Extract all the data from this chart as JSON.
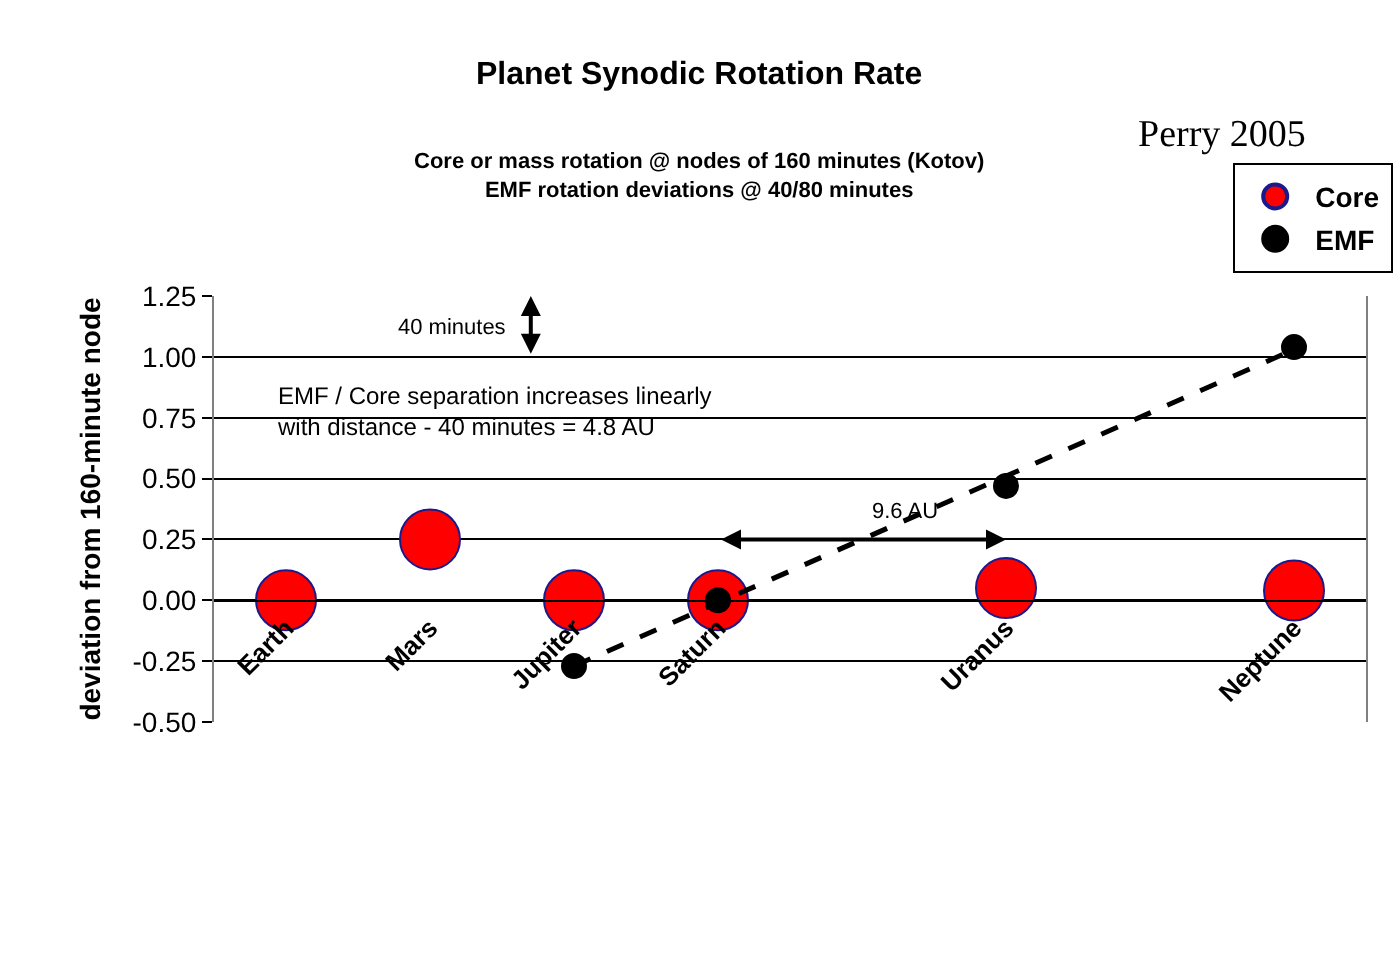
{
  "chart_data": {
    "type": "scatter",
    "title": "Planet Synodic Rotation Rate",
    "subtitle": "Core or mass rotation @ nodes of 160 minutes (Kotov)\nEMF rotation deviations @ 40/80 minutes",
    "ylabel": "deviation from 160-minute node",
    "categories": [
      "Earth",
      "Mars",
      "Jupiter",
      "Saturn",
      null,
      "Uranus",
      null,
      "Neptune"
    ],
    "series": [
      {
        "name": "Core",
        "color": "#ff0000",
        "marker": "circle",
        "values": [
          0,
          0.25,
          0,
          0,
          null,
          0.05,
          null,
          0.04
        ]
      },
      {
        "name": "EMF",
        "color": "#000000",
        "marker": "circle",
        "values": [
          null,
          null,
          -0.27,
          0,
          null,
          0.47,
          null,
          1.04
        ]
      },
      {
        "type": "line",
        "color": "#000000",
        "line_style": "dashed",
        "values": [
          null,
          null,
          -0.27,
          -0.01,
          0.25,
          0.51,
          0.77,
          1.03
        ]
      }
    ],
    "ylim": [
      -0.5,
      1.25
    ],
    "yticks": [
      {
        "value": -0.5,
        "label": "-0.50"
      },
      {
        "value": -0.25,
        "label": "-0.25"
      },
      {
        "value": 0,
        "label": "0.00"
      },
      {
        "value": 0.25,
        "label": "0.25"
      },
      {
        "value": 0.5,
        "label": "0.50"
      },
      {
        "value": 0.75,
        "label": "0.75"
      },
      {
        "value": 1,
        "label": "1.00"
      },
      {
        "value": 1.25,
        "label": "1.25"
      }
    ],
    "grid": "y",
    "legend": "top right",
    "annotations": [
      "Perry 2005",
      "40 minutes",
      "EMF / Core separation increases linearly\nwith distance - 40 minutes = 4.8 AU",
      "9.6 AU"
    ]
  }
}
